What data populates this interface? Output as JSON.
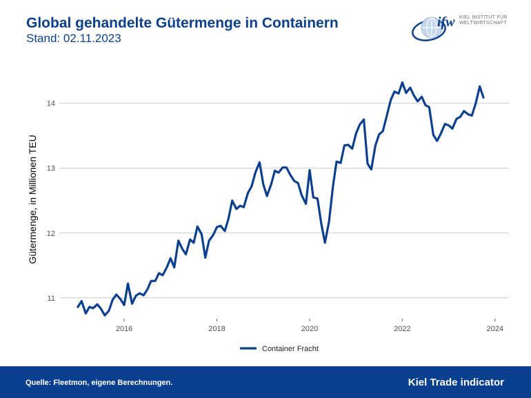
{
  "header": {
    "title": "Global gehandelte Gütermenge in Containern",
    "subtitle": "Stand: 02.11.2023"
  },
  "logo": {
    "mark": "ifw",
    "line1": "KIEL INSTITUT FÜR",
    "line2": "WELTWIRTSCHAFT"
  },
  "footer": {
    "source": "Quelle: Fleetmon, eigene Berechnungen.",
    "brand": "Kiel Trade indicator"
  },
  "colors": {
    "brand_blue": "#0b3f8f",
    "line": "#0b3f8f",
    "grid": "#cccccc"
  },
  "chart_data": {
    "type": "line",
    "title": "",
    "xlabel": "",
    "ylabel": "Gütermenge, in Millionen TEU",
    "xlim": [
      2014.6,
      2024.3
    ],
    "ylim": [
      10.7,
      14.55
    ],
    "x_ticks": [
      2016,
      2018,
      2020,
      2022,
      2024
    ],
    "y_ticks": [
      11,
      12,
      13,
      14
    ],
    "grid": "horizontal",
    "legend_position": "bottom",
    "series": [
      {
        "name": "Container Fracht",
        "points": [
          [
            2015.0,
            10.86
          ],
          [
            2015.08,
            10.95
          ],
          [
            2015.17,
            10.76
          ],
          [
            2015.25,
            10.86
          ],
          [
            2015.33,
            10.84
          ],
          [
            2015.42,
            10.9
          ],
          [
            2015.5,
            10.83
          ],
          [
            2015.58,
            10.73
          ],
          [
            2015.67,
            10.8
          ],
          [
            2015.75,
            10.97
          ],
          [
            2015.83,
            11.05
          ],
          [
            2015.92,
            10.98
          ],
          [
            2016.0,
            10.89
          ],
          [
            2016.08,
            11.22
          ],
          [
            2016.17,
            10.91
          ],
          [
            2016.25,
            11.03
          ],
          [
            2016.33,
            11.07
          ],
          [
            2016.42,
            11.04
          ],
          [
            2016.5,
            11.13
          ],
          [
            2016.58,
            11.26
          ],
          [
            2016.67,
            11.26
          ],
          [
            2016.75,
            11.38
          ],
          [
            2016.83,
            11.35
          ],
          [
            2016.92,
            11.47
          ],
          [
            2017.0,
            11.61
          ],
          [
            2017.08,
            11.47
          ],
          [
            2017.17,
            11.88
          ],
          [
            2017.25,
            11.76
          ],
          [
            2017.33,
            11.67
          ],
          [
            2017.42,
            11.9
          ],
          [
            2017.5,
            11.85
          ],
          [
            2017.58,
            12.1
          ],
          [
            2017.67,
            11.98
          ],
          [
            2017.75,
            11.62
          ],
          [
            2017.83,
            11.88
          ],
          [
            2017.92,
            11.97
          ],
          [
            2018.0,
            12.09
          ],
          [
            2018.08,
            12.11
          ],
          [
            2018.17,
            12.03
          ],
          [
            2018.25,
            12.22
          ],
          [
            2018.33,
            12.5
          ],
          [
            2018.42,
            12.37
          ],
          [
            2018.5,
            12.42
          ],
          [
            2018.58,
            12.4
          ],
          [
            2018.67,
            12.62
          ],
          [
            2018.75,
            12.72
          ],
          [
            2018.83,
            12.93
          ],
          [
            2018.92,
            13.09
          ],
          [
            2019.0,
            12.75
          ],
          [
            2019.08,
            12.57
          ],
          [
            2019.17,
            12.75
          ],
          [
            2019.25,
            12.96
          ],
          [
            2019.33,
            12.93
          ],
          [
            2019.42,
            13.01
          ],
          [
            2019.5,
            13.01
          ],
          [
            2019.58,
            12.9
          ],
          [
            2019.67,
            12.8
          ],
          [
            2019.75,
            12.77
          ],
          [
            2019.83,
            12.58
          ],
          [
            2019.92,
            12.45
          ],
          [
            2020.0,
            12.97
          ],
          [
            2020.08,
            12.55
          ],
          [
            2020.17,
            12.53
          ],
          [
            2020.25,
            12.15
          ],
          [
            2020.33,
            11.85
          ],
          [
            2020.42,
            12.18
          ],
          [
            2020.5,
            12.7
          ],
          [
            2020.58,
            13.1
          ],
          [
            2020.67,
            13.08
          ],
          [
            2020.75,
            13.35
          ],
          [
            2020.83,
            13.36
          ],
          [
            2020.92,
            13.3
          ],
          [
            2021.0,
            13.53
          ],
          [
            2021.08,
            13.67
          ],
          [
            2021.17,
            13.75
          ],
          [
            2021.25,
            13.07
          ],
          [
            2021.33,
            12.98
          ],
          [
            2021.42,
            13.35
          ],
          [
            2021.5,
            13.52
          ],
          [
            2021.58,
            13.57
          ],
          [
            2021.67,
            13.82
          ],
          [
            2021.75,
            14.05
          ],
          [
            2021.83,
            14.18
          ],
          [
            2021.92,
            14.15
          ],
          [
            2022.0,
            14.32
          ],
          [
            2022.08,
            14.16
          ],
          [
            2022.17,
            14.24
          ],
          [
            2022.25,
            14.12
          ],
          [
            2022.33,
            14.03
          ],
          [
            2022.42,
            14.1
          ],
          [
            2022.5,
            13.97
          ],
          [
            2022.58,
            13.94
          ],
          [
            2022.67,
            13.51
          ],
          [
            2022.75,
            13.42
          ],
          [
            2022.83,
            13.53
          ],
          [
            2022.92,
            13.68
          ],
          [
            2023.0,
            13.66
          ],
          [
            2023.08,
            13.61
          ],
          [
            2023.17,
            13.76
          ],
          [
            2023.25,
            13.79
          ],
          [
            2023.33,
            13.88
          ],
          [
            2023.42,
            13.83
          ],
          [
            2023.5,
            13.81
          ],
          [
            2023.58,
            13.99
          ],
          [
            2023.67,
            14.26
          ],
          [
            2023.75,
            14.09
          ]
        ]
      }
    ]
  }
}
